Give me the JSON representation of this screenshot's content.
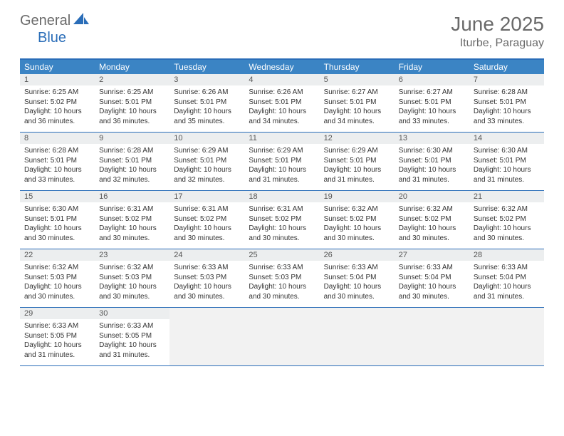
{
  "logo": {
    "text1": "General",
    "text2": "Blue"
  },
  "title": "June 2025",
  "location": "Iturbe, Paraguay",
  "colors": {
    "header_bar": "#3b84c4",
    "border": "#2a6db8",
    "daynum_bg": "#eceeef",
    "empty_bg": "#f2f2f2",
    "text_muted": "#6a6a6a"
  },
  "weekdays": [
    "Sunday",
    "Monday",
    "Tuesday",
    "Wednesday",
    "Thursday",
    "Friday",
    "Saturday"
  ],
  "weeks": [
    [
      {
        "n": "1",
        "sunrise": "Sunrise: 6:25 AM",
        "sunset": "Sunset: 5:02 PM",
        "daylight": "Daylight: 10 hours and 36 minutes."
      },
      {
        "n": "2",
        "sunrise": "Sunrise: 6:25 AM",
        "sunset": "Sunset: 5:01 PM",
        "daylight": "Daylight: 10 hours and 36 minutes."
      },
      {
        "n": "3",
        "sunrise": "Sunrise: 6:26 AM",
        "sunset": "Sunset: 5:01 PM",
        "daylight": "Daylight: 10 hours and 35 minutes."
      },
      {
        "n": "4",
        "sunrise": "Sunrise: 6:26 AM",
        "sunset": "Sunset: 5:01 PM",
        "daylight": "Daylight: 10 hours and 34 minutes."
      },
      {
        "n": "5",
        "sunrise": "Sunrise: 6:27 AM",
        "sunset": "Sunset: 5:01 PM",
        "daylight": "Daylight: 10 hours and 34 minutes."
      },
      {
        "n": "6",
        "sunrise": "Sunrise: 6:27 AM",
        "sunset": "Sunset: 5:01 PM",
        "daylight": "Daylight: 10 hours and 33 minutes."
      },
      {
        "n": "7",
        "sunrise": "Sunrise: 6:28 AM",
        "sunset": "Sunset: 5:01 PM",
        "daylight": "Daylight: 10 hours and 33 minutes."
      }
    ],
    [
      {
        "n": "8",
        "sunrise": "Sunrise: 6:28 AM",
        "sunset": "Sunset: 5:01 PM",
        "daylight": "Daylight: 10 hours and 33 minutes."
      },
      {
        "n": "9",
        "sunrise": "Sunrise: 6:28 AM",
        "sunset": "Sunset: 5:01 PM",
        "daylight": "Daylight: 10 hours and 32 minutes."
      },
      {
        "n": "10",
        "sunrise": "Sunrise: 6:29 AM",
        "sunset": "Sunset: 5:01 PM",
        "daylight": "Daylight: 10 hours and 32 minutes."
      },
      {
        "n": "11",
        "sunrise": "Sunrise: 6:29 AM",
        "sunset": "Sunset: 5:01 PM",
        "daylight": "Daylight: 10 hours and 31 minutes."
      },
      {
        "n": "12",
        "sunrise": "Sunrise: 6:29 AM",
        "sunset": "Sunset: 5:01 PM",
        "daylight": "Daylight: 10 hours and 31 minutes."
      },
      {
        "n": "13",
        "sunrise": "Sunrise: 6:30 AM",
        "sunset": "Sunset: 5:01 PM",
        "daylight": "Daylight: 10 hours and 31 minutes."
      },
      {
        "n": "14",
        "sunrise": "Sunrise: 6:30 AM",
        "sunset": "Sunset: 5:01 PM",
        "daylight": "Daylight: 10 hours and 31 minutes."
      }
    ],
    [
      {
        "n": "15",
        "sunrise": "Sunrise: 6:30 AM",
        "sunset": "Sunset: 5:01 PM",
        "daylight": "Daylight: 10 hours and 30 minutes."
      },
      {
        "n": "16",
        "sunrise": "Sunrise: 6:31 AM",
        "sunset": "Sunset: 5:02 PM",
        "daylight": "Daylight: 10 hours and 30 minutes."
      },
      {
        "n": "17",
        "sunrise": "Sunrise: 6:31 AM",
        "sunset": "Sunset: 5:02 PM",
        "daylight": "Daylight: 10 hours and 30 minutes."
      },
      {
        "n": "18",
        "sunrise": "Sunrise: 6:31 AM",
        "sunset": "Sunset: 5:02 PM",
        "daylight": "Daylight: 10 hours and 30 minutes."
      },
      {
        "n": "19",
        "sunrise": "Sunrise: 6:32 AM",
        "sunset": "Sunset: 5:02 PM",
        "daylight": "Daylight: 10 hours and 30 minutes."
      },
      {
        "n": "20",
        "sunrise": "Sunrise: 6:32 AM",
        "sunset": "Sunset: 5:02 PM",
        "daylight": "Daylight: 10 hours and 30 minutes."
      },
      {
        "n": "21",
        "sunrise": "Sunrise: 6:32 AM",
        "sunset": "Sunset: 5:02 PM",
        "daylight": "Daylight: 10 hours and 30 minutes."
      }
    ],
    [
      {
        "n": "22",
        "sunrise": "Sunrise: 6:32 AM",
        "sunset": "Sunset: 5:03 PM",
        "daylight": "Daylight: 10 hours and 30 minutes."
      },
      {
        "n": "23",
        "sunrise": "Sunrise: 6:32 AM",
        "sunset": "Sunset: 5:03 PM",
        "daylight": "Daylight: 10 hours and 30 minutes."
      },
      {
        "n": "24",
        "sunrise": "Sunrise: 6:33 AM",
        "sunset": "Sunset: 5:03 PM",
        "daylight": "Daylight: 10 hours and 30 minutes."
      },
      {
        "n": "25",
        "sunrise": "Sunrise: 6:33 AM",
        "sunset": "Sunset: 5:03 PM",
        "daylight": "Daylight: 10 hours and 30 minutes."
      },
      {
        "n": "26",
        "sunrise": "Sunrise: 6:33 AM",
        "sunset": "Sunset: 5:04 PM",
        "daylight": "Daylight: 10 hours and 30 minutes."
      },
      {
        "n": "27",
        "sunrise": "Sunrise: 6:33 AM",
        "sunset": "Sunset: 5:04 PM",
        "daylight": "Daylight: 10 hours and 30 minutes."
      },
      {
        "n": "28",
        "sunrise": "Sunrise: 6:33 AM",
        "sunset": "Sunset: 5:04 PM",
        "daylight": "Daylight: 10 hours and 31 minutes."
      }
    ],
    [
      {
        "n": "29",
        "sunrise": "Sunrise: 6:33 AM",
        "sunset": "Sunset: 5:05 PM",
        "daylight": "Daylight: 10 hours and 31 minutes."
      },
      {
        "n": "30",
        "sunrise": "Sunrise: 6:33 AM",
        "sunset": "Sunset: 5:05 PM",
        "daylight": "Daylight: 10 hours and 31 minutes."
      },
      null,
      null,
      null,
      null,
      null
    ]
  ]
}
